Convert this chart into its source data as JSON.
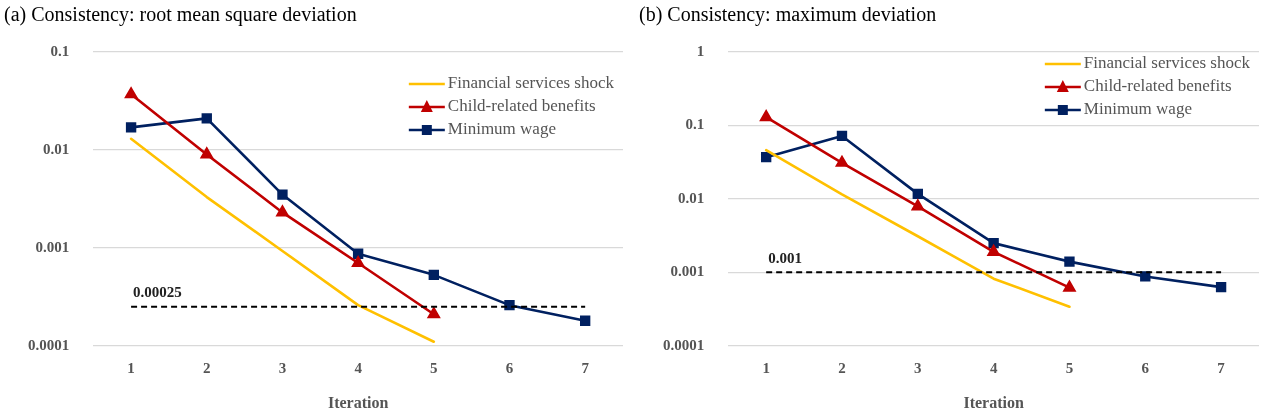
{
  "chart_data": [
    {
      "type": "line",
      "title": "(a) Consistency: root mean square deviation",
      "xlabel": "Iteration",
      "categories": [
        "1",
        "2",
        "3",
        "4",
        "5",
        "6",
        "7"
      ],
      "series": [
        {
          "name": "Financial services shock",
          "color": "#ffc000",
          "marker": "none",
          "values": [
            0.013,
            0.0033,
            0.00093,
            0.00026,
            0.00011,
            null,
            null
          ]
        },
        {
          "name": "Child-related benefits",
          "color": "#c00000",
          "marker": "triangle",
          "values": [
            0.037,
            0.009,
            0.0023,
            0.0007,
            0.00021,
            null,
            null
          ]
        },
        {
          "name": "Minimum wage",
          "color": "#002060",
          "marker": "square",
          "values": [
            0.017,
            0.021,
            0.0035,
            0.00087,
            0.00053,
            0.00026,
            0.00018
          ]
        }
      ],
      "log": "y",
      "ylim": [
        0.0001,
        0.1
      ],
      "yticks": [
        0.0001,
        0.001,
        0.01,
        0.1
      ],
      "grid": "y",
      "legend": "top right",
      "line_style": "solid",
      "ref_lines": [
        {
          "axis": "y",
          "value": 0.00025,
          "label": "0.00025",
          "color": "#000000",
          "line_style": "dashed"
        }
      ]
    },
    {
      "type": "line",
      "title": "(b) Consistency: maximum deviation",
      "xlabel": "Iteration",
      "categories": [
        "1",
        "2",
        "3",
        "4",
        "5",
        "6",
        "7"
      ],
      "series": [
        {
          "name": "Financial services shock",
          "color": "#ffc000",
          "marker": "none",
          "values": [
            0.046,
            0.0115,
            0.0031,
            0.00082,
            0.00034,
            null,
            null
          ]
        },
        {
          "name": "Child-related benefits",
          "color": "#c00000",
          "marker": "triangle",
          "values": [
            0.13,
            0.031,
            0.0079,
            0.0019,
            0.00062,
            null,
            null
          ]
        },
        {
          "name": "Minimum wage",
          "color": "#002060",
          "marker": "square",
          "values": [
            0.037,
            0.072,
            0.0117,
            0.0025,
            0.0014,
            0.00088,
            0.00063
          ]
        }
      ],
      "log": "y",
      "ylim": [
        0.0001,
        1
      ],
      "yticks": [
        0.0001,
        0.001,
        0.01,
        0.1,
        1
      ],
      "grid": "y",
      "legend": "top right",
      "line_style": "solid",
      "ref_lines": [
        {
          "axis": "y",
          "value": 0.001,
          "label": "0.001",
          "color": "#000000",
          "line_style": "dashed"
        }
      ]
    }
  ]
}
